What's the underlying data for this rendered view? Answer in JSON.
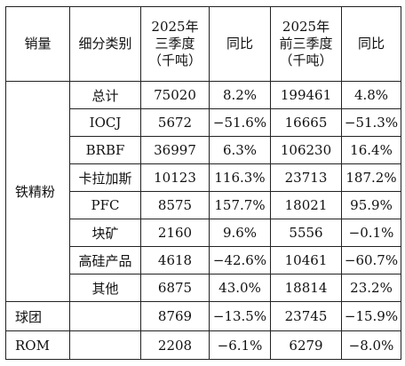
{
  "table": {
    "headers": {
      "sales": "销量",
      "subcategory": "细分类别",
      "q3_2025": [
        "2025年",
        "三季度",
        "（千吨）"
      ],
      "yoy1": "同比",
      "ytd_2025": [
        "2025年",
        "前三季度",
        "（千吨）"
      ],
      "yoy2": "同比"
    },
    "group_label": "铁精粉",
    "rows": [
      {
        "category": "总计",
        "q3": "75020",
        "yoy1": "8.2%",
        "ytd": "199461",
        "yoy2": "4.8%"
      },
      {
        "category": "IOCJ",
        "q3": "5672",
        "yoy1": "−51.6%",
        "ytd": "16665",
        "yoy2": "−51.3%"
      },
      {
        "category": "BRBF",
        "q3": "36997",
        "yoy1": "6.3%",
        "ytd": "106230",
        "yoy2": "16.4%"
      },
      {
        "category": "卡拉加斯",
        "q3": "10123",
        "yoy1": "116.3%",
        "ytd": "23713",
        "yoy2": "187.2%"
      },
      {
        "category": "PFC",
        "q3": "8575",
        "yoy1": "157.7%",
        "ytd": "18021",
        "yoy2": "95.9%"
      },
      {
        "category": "块矿",
        "q3": "2160",
        "yoy1": "9.6%",
        "ytd": "5556",
        "yoy2": "−0.1%"
      },
      {
        "category": "高硅产品",
        "q3": "4618",
        "yoy1": "−42.6%",
        "ytd": "10461",
        "yoy2": "−60.7%"
      },
      {
        "category": "其他",
        "q3": "6875",
        "yoy1": "43.0%",
        "ytd": "18814",
        "yoy2": "23.2%"
      }
    ],
    "extra_rows": [
      {
        "label": "球团",
        "category": "",
        "q3": "8769",
        "yoy1": "−13.5%",
        "ytd": "23745",
        "yoy2": "−15.9%"
      },
      {
        "label": "ROM",
        "category": "",
        "q3": "2208",
        "yoy1": "−6.1%",
        "ytd": "6279",
        "yoy2": "−8.0%"
      }
    ]
  }
}
